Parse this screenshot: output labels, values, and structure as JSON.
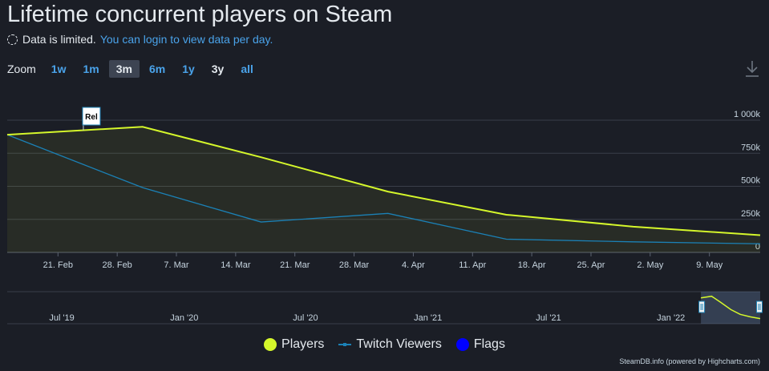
{
  "header": {
    "title": "Lifetime concurrent players on Steam",
    "limited_text": "Data is limited.",
    "login_link": "You can login to view data per day."
  },
  "zoom": {
    "label": "Zoom",
    "buttons": [
      "1w",
      "1m",
      "3m",
      "6m",
      "1y",
      "3y",
      "all"
    ],
    "active": "3m"
  },
  "icons": {
    "download": "download-icon",
    "flag": "flag-marker"
  },
  "legend": [
    "Players",
    "Twitch Viewers",
    "Flags"
  ],
  "credits": "SteamDB.info (powered by Highcharts.com)",
  "flag_label": "Rel",
  "colors": {
    "players": "#d5f72b",
    "twitch": "#1b81b6",
    "flags": "#0000ff"
  },
  "chart_data": {
    "type": "line",
    "x_ticks": [
      "21. Feb",
      "28. Feb",
      "7. Mar",
      "14. Mar",
      "21. Mar",
      "28. Mar",
      "4. Apr",
      "11. Apr",
      "18. Apr",
      "25. Apr",
      "2. May",
      "9. May"
    ],
    "y_ticks": [
      "0",
      "250k",
      "500k",
      "750k",
      "1 000k"
    ],
    "ylim": [
      0,
      1000000
    ],
    "grid": true,
    "legend_position": "bottom-center",
    "series": [
      {
        "name": "Players",
        "points": [
          {
            "x": "2022-02-15",
            "y": 890000
          },
          {
            "x": "2022-03-03",
            "y": 950000
          },
          {
            "x": "2022-03-17",
            "y": 720000
          },
          {
            "x": "2022-04-01",
            "y": 460000
          },
          {
            "x": "2022-04-15",
            "y": 285000
          },
          {
            "x": "2022-04-30",
            "y": 195000
          },
          {
            "x": "2022-05-15",
            "y": 130000
          }
        ]
      },
      {
        "name": "Twitch Viewers",
        "points": [
          {
            "x": "2022-02-15",
            "y": 890000
          },
          {
            "x": "2022-03-03",
            "y": 490000
          },
          {
            "x": "2022-03-17",
            "y": 230000
          },
          {
            "x": "2022-04-01",
            "y": 295000
          },
          {
            "x": "2022-04-15",
            "y": 100000
          },
          {
            "x": "2022-04-30",
            "y": 80000
          },
          {
            "x": "2022-05-15",
            "y": 65000
          }
        ]
      }
    ],
    "flags": [
      {
        "x": "2022-02-24",
        "label": "Rel"
      }
    ],
    "navigator": {
      "x_ticks": [
        "Jul '19",
        "Jan '20",
        "Jul '20",
        "Jan '21",
        "Jul '21",
        "Jan '22"
      ],
      "selected_range": [
        "2022-02-15",
        "2022-05-15"
      ]
    }
  }
}
